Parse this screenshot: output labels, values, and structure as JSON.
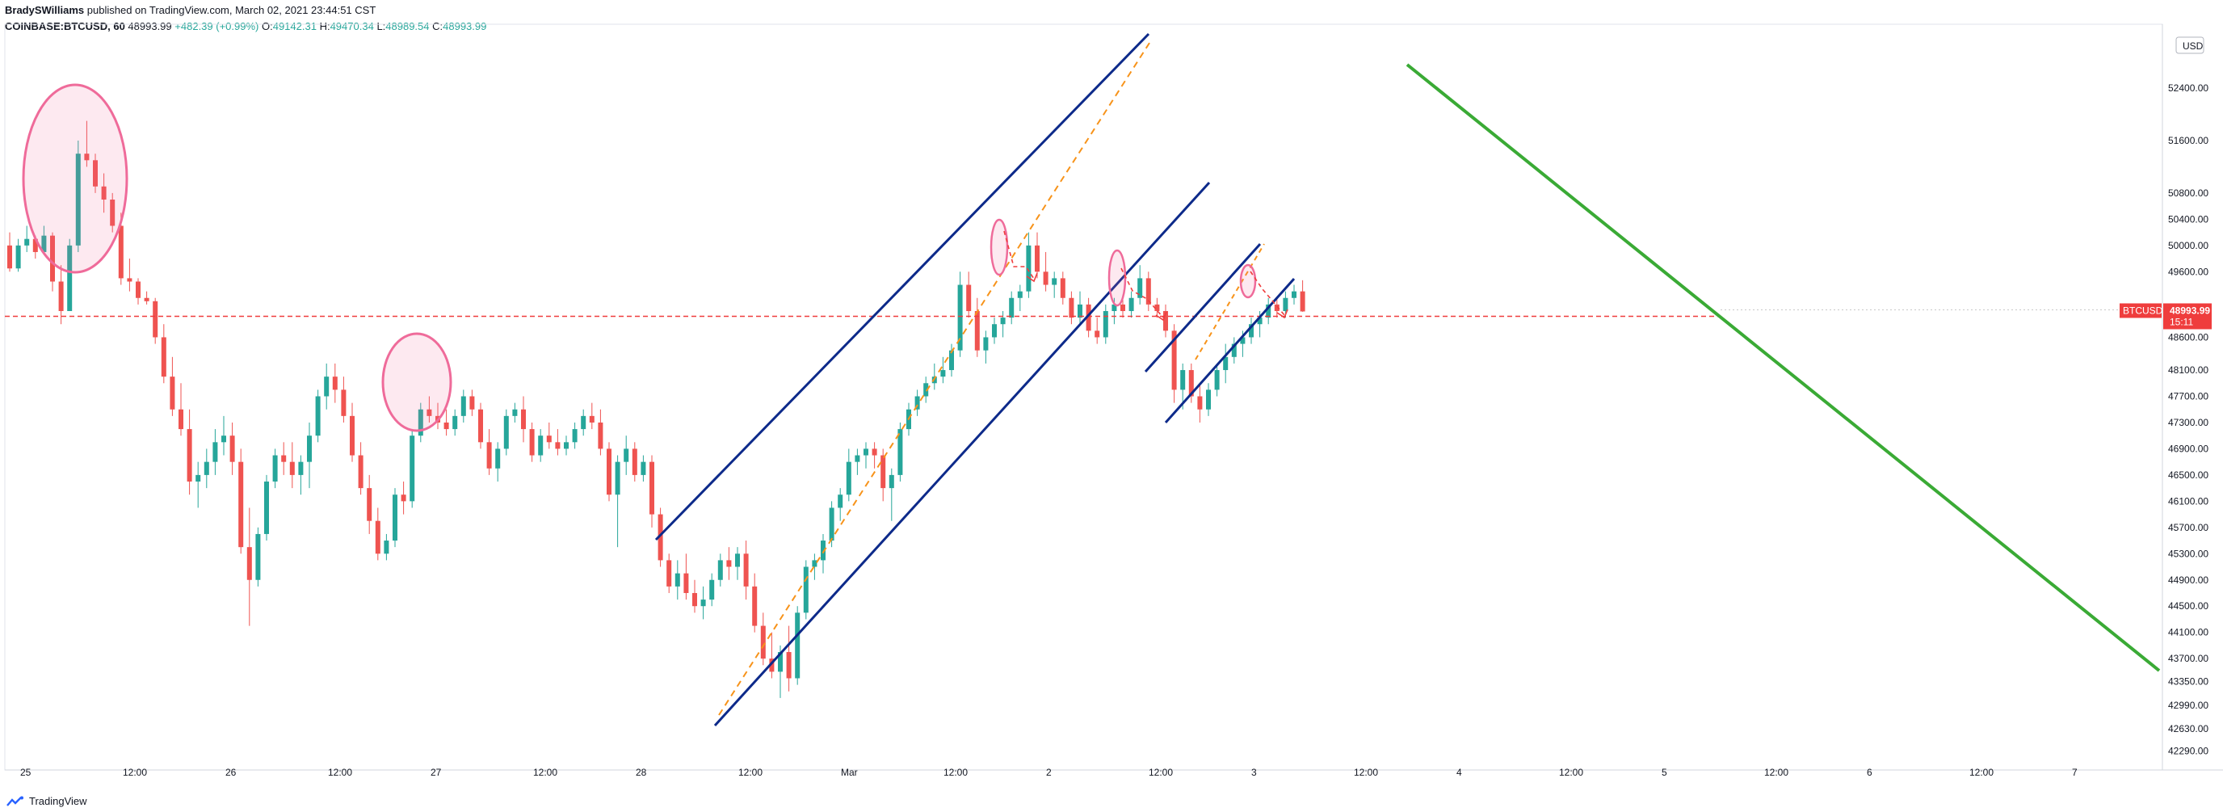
{
  "header": {
    "publisher": "BradySWilliams",
    "published_on": "published on TradingView.com, March 02, 2021 23:44:51 CST",
    "symbol": "COINBASE:BTCUSD, 60",
    "last": "48993.99",
    "change": "+482.39 (+0.99%)",
    "o_label": "O:",
    "o_value": "49142.31",
    "h_label": "H:",
    "h_value": "49470.34",
    "l_label": "L:",
    "l_value": "48989.54",
    "c_label": "C:",
    "c_value": "48993.99"
  },
  "footer": {
    "brand": "TradingView"
  },
  "colors": {
    "up": "#26a69a",
    "down": "#ef5350",
    "channel": "#0d2a8a",
    "dashed_orange": "#f7931a",
    "green_line": "#3aaa35",
    "circle": "#ef6b9a",
    "price_line": "#ef3d3d"
  },
  "chart_data": {
    "type": "candlestick",
    "symbol": "BTCUSD",
    "interval": "60",
    "currency": "USD",
    "price_label": "BTCUSD",
    "last_price": "48993.99",
    "countdown": "15:11",
    "ylim": [
      42100,
      53300
    ],
    "y_ticks": [
      "52400.00",
      "51600.00",
      "50800.00",
      "50400.00",
      "50000.00",
      "49600.00",
      "48600.00",
      "48100.00",
      "47700.00",
      "47300.00",
      "46900.00",
      "46500.00",
      "46100.00",
      "45700.00",
      "45300.00",
      "44900.00",
      "44500.00",
      "44100.00",
      "43700.00",
      "43350.00",
      "42990.00",
      "42630.00",
      "42290.00"
    ],
    "x_ticks": [
      "25",
      "12:00",
      "26",
      "12:00",
      "27",
      "12:00",
      "28",
      "12:00",
      "Mar",
      "12:00",
      "2",
      "12:00",
      "3",
      "12:00",
      "4",
      "12:00",
      "5",
      "12:00",
      "6",
      "12:00",
      "7"
    ],
    "candles_ohlc": [
      [
        50000,
        50200,
        49600,
        49650
      ],
      [
        49650,
        50100,
        49600,
        50000
      ],
      [
        50000,
        50300,
        49900,
        50100
      ],
      [
        50100,
        50150,
        49800,
        49900
      ],
      [
        49900,
        50300,
        49900,
        50150
      ],
      [
        50150,
        50200,
        49300,
        49450
      ],
      [
        49450,
        49700,
        48800,
        49000
      ],
      [
        49000,
        50100,
        49000,
        50000
      ],
      [
        50000,
        51600,
        49900,
        51400
      ],
      [
        51400,
        51900,
        51200,
        51300
      ],
      [
        51300,
        51400,
        50800,
        50900
      ],
      [
        50900,
        51100,
        50500,
        50700
      ],
      [
        50700,
        50800,
        50200,
        50300
      ],
      [
        50300,
        50500,
        49400,
        49500
      ],
      [
        49500,
        49800,
        49300,
        49450
      ],
      [
        49450,
        49500,
        49100,
        49200
      ],
      [
        49200,
        49300,
        49100,
        49150
      ],
      [
        49150,
        49200,
        48500,
        48600
      ],
      [
        48600,
        48800,
        47900,
        48000
      ],
      [
        48000,
        48300,
        47400,
        47500
      ],
      [
        47500,
        47900,
        47100,
        47200
      ],
      [
        47200,
        47500,
        46200,
        46400
      ],
      [
        46400,
        46700,
        46000,
        46500
      ],
      [
        46500,
        46900,
        46300,
        46700
      ],
      [
        46700,
        47200,
        46500,
        47000
      ],
      [
        47000,
        47400,
        46800,
        47100
      ],
      [
        47100,
        47300,
        46500,
        46700
      ],
      [
        46700,
        46900,
        45300,
        45400
      ],
      [
        45400,
        46000,
        44200,
        44900
      ],
      [
        44900,
        45700,
        44800,
        45600
      ],
      [
        45600,
        46500,
        45500,
        46400
      ],
      [
        46400,
        46900,
        46300,
        46800
      ],
      [
        46800,
        47000,
        46500,
        46700
      ],
      [
        46700,
        47000,
        46300,
        46500
      ],
      [
        46500,
        46800,
        46200,
        46700
      ],
      [
        46700,
        47300,
        46300,
        47100
      ],
      [
        47100,
        47800,
        47000,
        47700
      ],
      [
        47700,
        48200,
        47500,
        48000
      ],
      [
        48000,
        48200,
        47600,
        47800
      ],
      [
        47800,
        48000,
        47300,
        47400
      ],
      [
        47400,
        47600,
        46700,
        46800
      ],
      [
        46800,
        47000,
        46200,
        46300
      ],
      [
        46300,
        46500,
        45600,
        45800
      ],
      [
        45800,
        46000,
        45200,
        45300
      ],
      [
        45300,
        45600,
        45200,
        45500
      ],
      [
        45500,
        46300,
        45400,
        46200
      ],
      [
        46200,
        46400,
        45900,
        46100
      ],
      [
        46100,
        47200,
        46000,
        47100
      ],
      [
        47100,
        47600,
        47000,
        47500
      ],
      [
        47500,
        47700,
        47300,
        47400
      ],
      [
        47400,
        47600,
        47200,
        47300
      ],
      [
        47300,
        47500,
        47100,
        47200
      ],
      [
        47200,
        47500,
        47100,
        47400
      ],
      [
        47400,
        47800,
        47300,
        47700
      ],
      [
        47700,
        47800,
        47400,
        47500
      ],
      [
        47500,
        47600,
        46900,
        47000
      ],
      [
        47000,
        47200,
        46500,
        46600
      ],
      [
        46600,
        47000,
        46400,
        46900
      ],
      [
        46900,
        47500,
        46800,
        47400
      ],
      [
        47400,
        47600,
        47300,
        47500
      ],
      [
        47500,
        47700,
        47000,
        47200
      ],
      [
        47200,
        47300,
        46700,
        46800
      ],
      [
        46800,
        47200,
        46700,
        47100
      ],
      [
        47100,
        47300,
        46900,
        47000
      ],
      [
        47000,
        47200,
        46800,
        46900
      ],
      [
        46900,
        47100,
        46800,
        47000
      ],
      [
        47000,
        47300,
        46900,
        47200
      ],
      [
        47200,
        47500,
        47100,
        47400
      ],
      [
        47400,
        47600,
        47200,
        47300
      ],
      [
        47300,
        47500,
        46800,
        46900
      ],
      [
        46900,
        47000,
        46100,
        46200
      ],
      [
        46200,
        46800,
        45400,
        46700
      ],
      [
        46700,
        47100,
        46500,
        46900
      ],
      [
        46900,
        47000,
        46400,
        46500
      ],
      [
        46500,
        46800,
        46400,
        46700
      ],
      [
        46700,
        46800,
        45700,
        45900
      ],
      [
        45900,
        46000,
        45100,
        45200
      ],
      [
        45200,
        45300,
        44700,
        44800
      ],
      [
        44800,
        45200,
        44600,
        45000
      ],
      [
        45000,
        45300,
        44600,
        44700
      ],
      [
        44700,
        44900,
        44400,
        44500
      ],
      [
        44500,
        44800,
        44300,
        44600
      ],
      [
        44600,
        45000,
        44500,
        44900
      ],
      [
        44900,
        45300,
        44800,
        45200
      ],
      [
        45200,
        45400,
        44900,
        45100
      ],
      [
        45100,
        45400,
        44900,
        45300
      ],
      [
        45300,
        45500,
        44600,
        44800
      ],
      [
        44800,
        45000,
        44100,
        44200
      ],
      [
        44200,
        44400,
        43600,
        43700
      ],
      [
        43700,
        44100,
        43400,
        43500
      ],
      [
        43500,
        43900,
        43100,
        43800
      ],
      [
        43800,
        44200,
        43200,
        43400
      ],
      [
        43400,
        44500,
        43300,
        44400
      ],
      [
        44400,
        45200,
        44300,
        45100
      ],
      [
        45100,
        45300,
        44900,
        45200
      ],
      [
        45200,
        45600,
        45000,
        45500
      ],
      [
        45500,
        46100,
        45400,
        46000
      ],
      [
        46000,
        46300,
        45800,
        46200
      ],
      [
        46200,
        46900,
        46100,
        46700
      ],
      [
        46700,
        46900,
        46500,
        46800
      ],
      [
        46800,
        47000,
        46600,
        46900
      ],
      [
        46900,
        47000,
        46600,
        46800
      ],
      [
        46800,
        46900,
        46100,
        46300
      ],
      [
        46300,
        46600,
        45800,
        46500
      ],
      [
        46500,
        47300,
        46400,
        47200
      ],
      [
        47200,
        47600,
        47100,
        47500
      ],
      [
        47500,
        47800,
        47400,
        47700
      ],
      [
        47700,
        48000,
        47600,
        47900
      ],
      [
        47900,
        48200,
        47800,
        48000
      ],
      [
        48000,
        48300,
        47900,
        48100
      ],
      [
        48100,
        48500,
        48000,
        48400
      ],
      [
        48400,
        49600,
        48300,
        49400
      ],
      [
        49400,
        49600,
        48900,
        49000
      ],
      [
        49000,
        49200,
        48300,
        48400
      ],
      [
        48400,
        48700,
        48200,
        48600
      ],
      [
        48600,
        48900,
        48500,
        48800
      ],
      [
        48800,
        49000,
        48600,
        48900
      ],
      [
        48900,
        49300,
        48800,
        49200
      ],
      [
        49200,
        49400,
        49000,
        49300
      ],
      [
        49300,
        50200,
        49200,
        50000
      ],
      [
        50000,
        50200,
        49500,
        49600
      ],
      [
        49600,
        49900,
        49300,
        49400
      ],
      [
        49400,
        49600,
        49200,
        49500
      ],
      [
        49500,
        49600,
        49100,
        49200
      ],
      [
        49200,
        49300,
        48800,
        48900
      ],
      [
        48900,
        49300,
        48800,
        49100
      ],
      [
        49100,
        49200,
        48600,
        48700
      ],
      [
        48700,
        48900,
        48500,
        48600
      ],
      [
        48600,
        49100,
        48500,
        49000
      ],
      [
        49000,
        49200,
        48800,
        49100
      ],
      [
        49100,
        49200,
        48900,
        49000
      ],
      [
        49000,
        49300,
        48900,
        49200
      ],
      [
        49200,
        49700,
        49100,
        49500
      ],
      [
        49500,
        49600,
        49000,
        49100
      ],
      [
        49100,
        49200,
        48900,
        49000
      ],
      [
        49000,
        49100,
        48600,
        48700
      ],
      [
        48700,
        48800,
        47600,
        47800
      ],
      [
        47800,
        48200,
        47500,
        48100
      ],
      [
        48100,
        48200,
        47600,
        47700
      ],
      [
        47700,
        47900,
        47300,
        47500
      ],
      [
        47500,
        47900,
        47400,
        47800
      ],
      [
        47800,
        48200,
        47700,
        48100
      ],
      [
        48100,
        48500,
        47900,
        48300
      ],
      [
        48300,
        48600,
        48200,
        48500
      ],
      [
        48500,
        48700,
        48300,
        48600
      ],
      [
        48600,
        48900,
        48500,
        48800
      ],
      [
        48800,
        49000,
        48600,
        48900
      ],
      [
        48900,
        49200,
        48800,
        49100
      ],
      [
        49100,
        49200,
        48900,
        49000
      ],
      [
        49000,
        49300,
        48900,
        49200
      ],
      [
        49200,
        49400,
        49100,
        49300
      ],
      [
        49300,
        49470,
        48989,
        48994
      ]
    ]
  }
}
